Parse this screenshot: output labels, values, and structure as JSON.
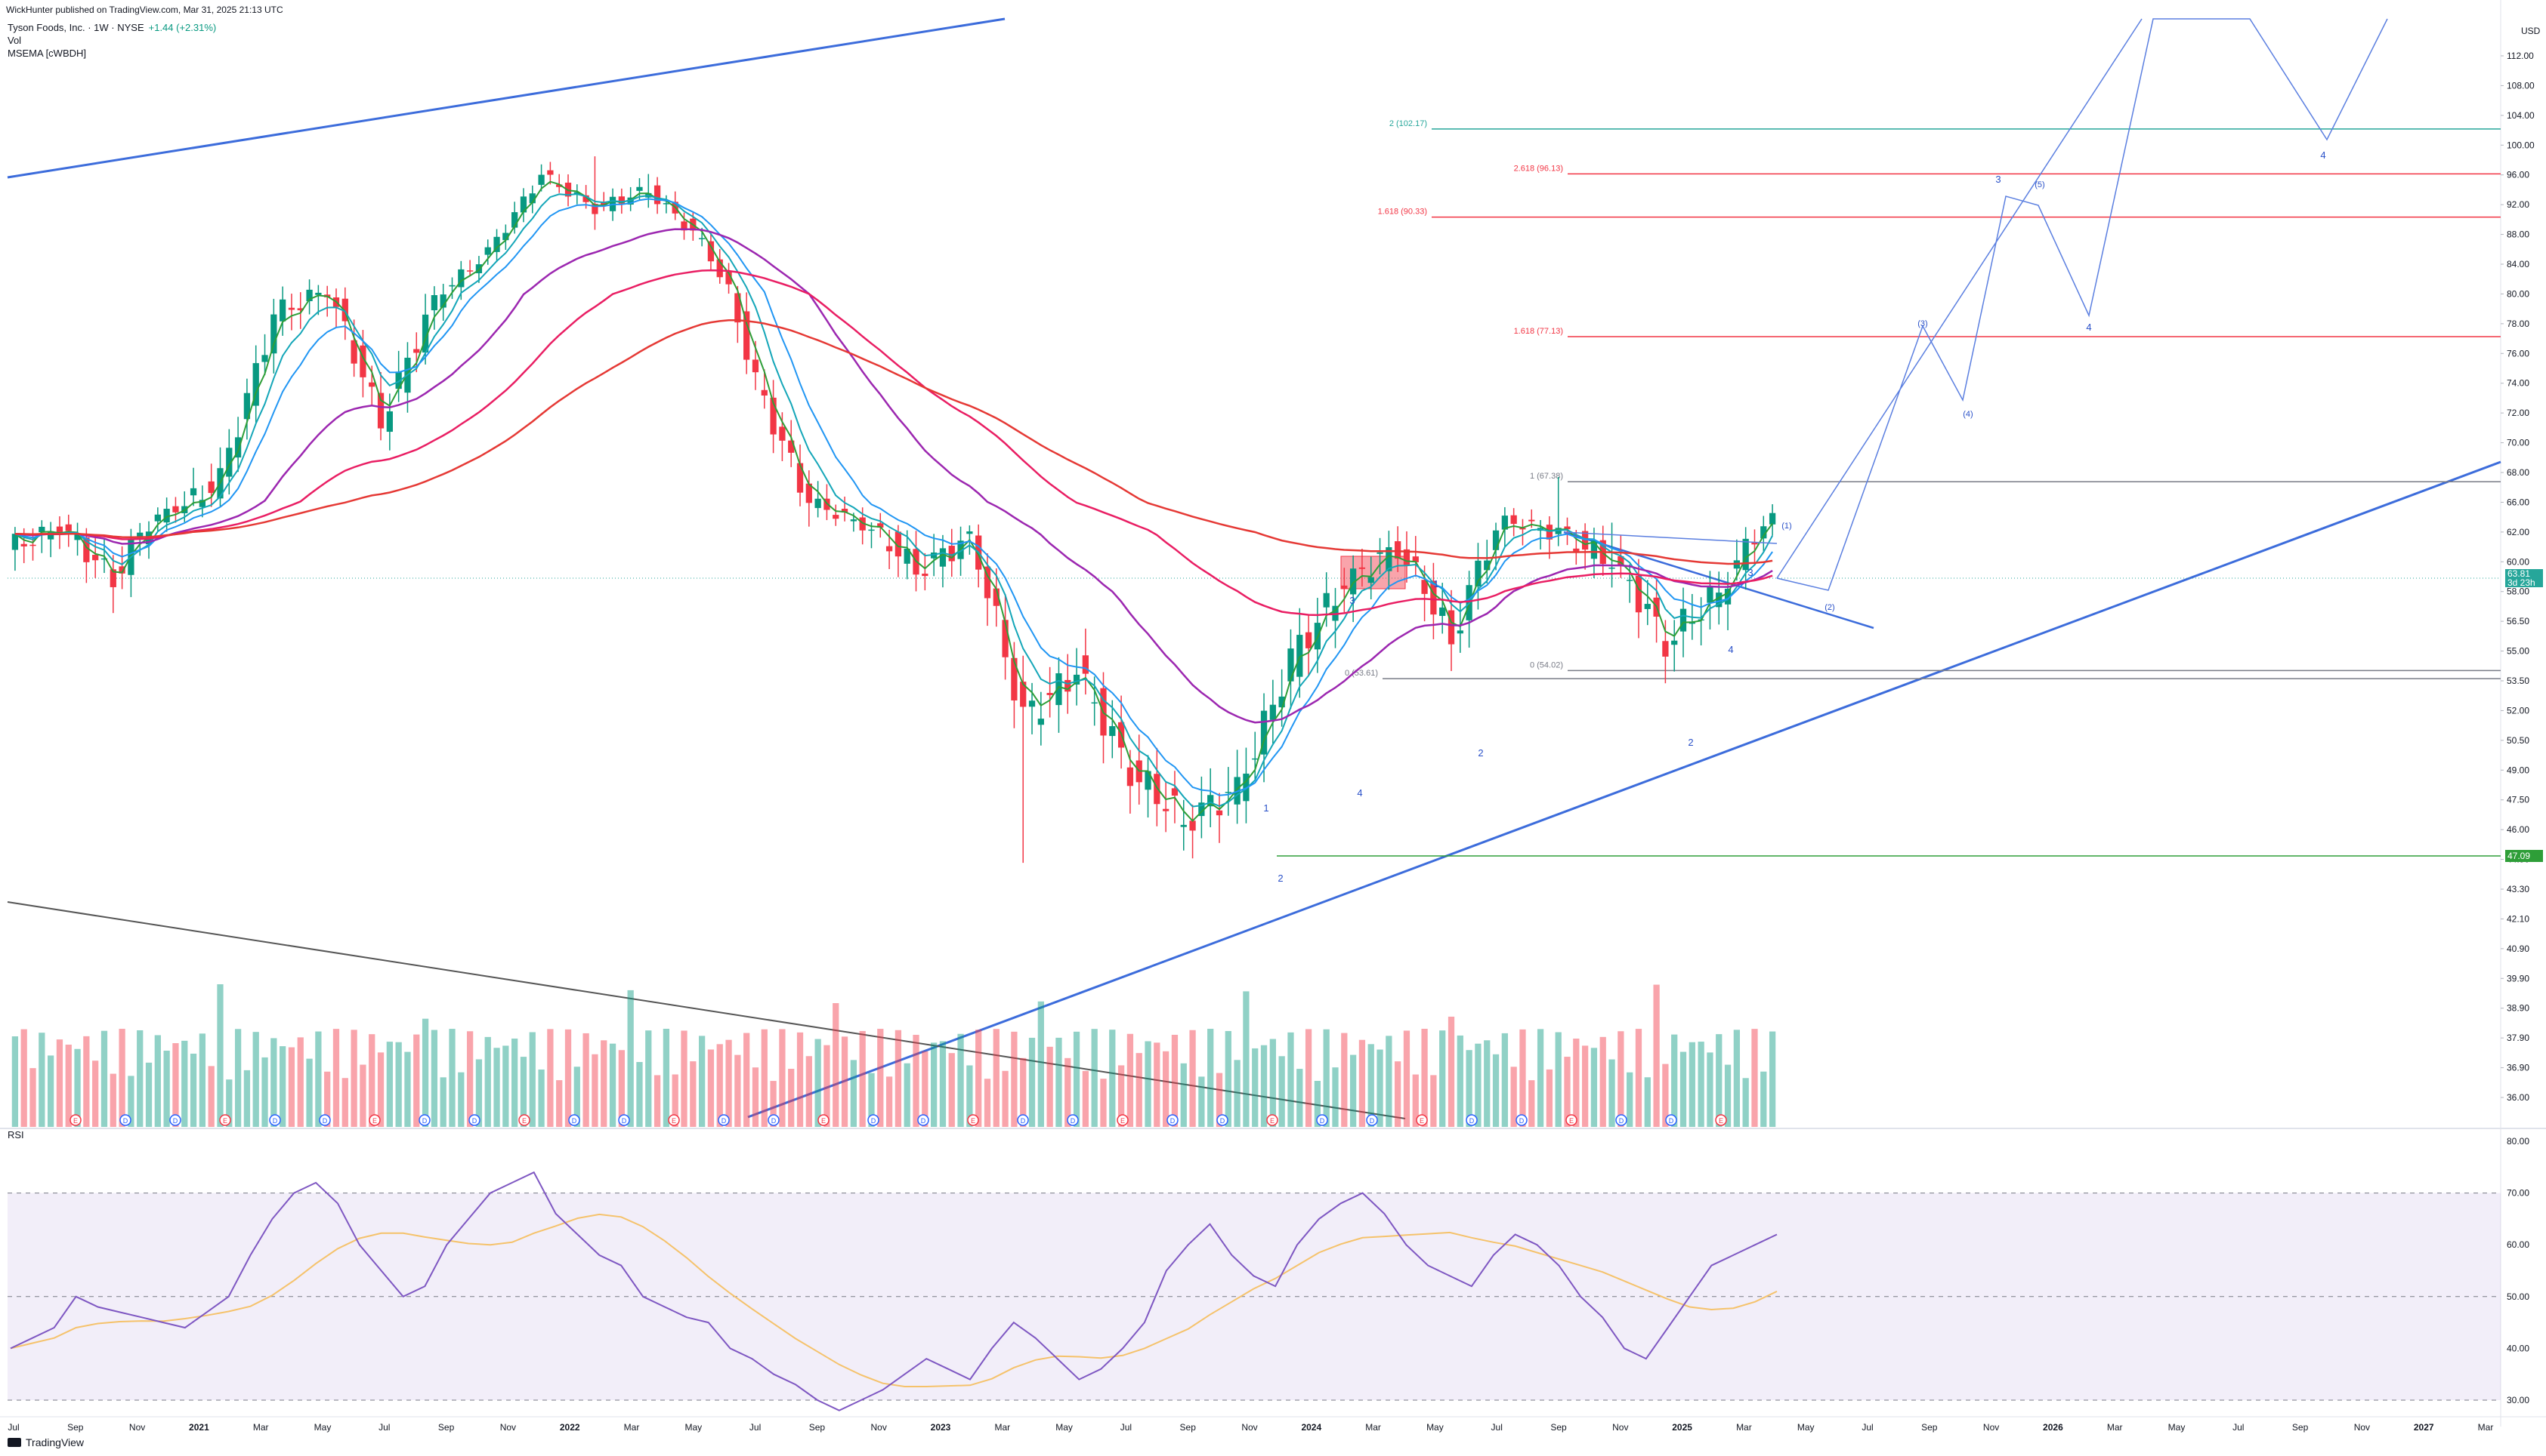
{
  "header": {
    "publisher": "WickHunter published on TradingView.com, Mar 31, 2025 21:13 UTC"
  },
  "legend": {
    "symbol": "Tyson Foods, Inc. · 1W · NYSE",
    "change": "+1.44 (+2.31%)",
    "vol": "Vol",
    "indicator": "MSEMA [cWBDH]"
  },
  "chart_data": {
    "type": "candlestick",
    "title": "Tyson Foods, Inc. · 1W · NYSE",
    "currency": "USD",
    "price_axis_ticks": [
      "112.00",
      "108.00",
      "104.00",
      "100.00",
      "96.00",
      "92.00",
      "88.00",
      "84.00",
      "80.00",
      "78.00",
      "76.00",
      "74.00",
      "72.00",
      "70.00",
      "68.00",
      "66.00",
      "62.00",
      "60.00",
      "58.00",
      "56.50",
      "55.00",
      "53.50",
      "52.00",
      "50.50",
      "49.00",
      "47.50",
      "46.00",
      "44.50",
      "43.30",
      "42.10",
      "40.90",
      "39.90",
      "38.90",
      "37.90",
      "36.90",
      "36.00"
    ],
    "current_price": "63.81",
    "current_countdown": "3d 23h",
    "support_price": "47.09",
    "time_axis_ticks": [
      "Jul",
      "Sep",
      "Nov",
      "2021",
      "Mar",
      "May",
      "Jul",
      "Sep",
      "Nov",
      "2022",
      "Mar",
      "May",
      "Jul",
      "Sep",
      "Nov",
      "2023",
      "Mar",
      "May",
      "Jul",
      "Sep",
      "Nov",
      "2024",
      "Mar",
      "May",
      "Jul",
      "Sep",
      "Nov",
      "2025",
      "Mar",
      "May",
      "Jul",
      "Sep",
      "Nov",
      "2026",
      "Mar",
      "May",
      "Jul",
      "Sep",
      "Nov",
      "2027",
      "Mar"
    ],
    "price_series": [
      {
        "date": "2020-06",
        "open": 59.5,
        "high": 61.5,
        "low": 57.5,
        "close": 60.8
      },
      {
        "date": "2020-08",
        "open": 60.8,
        "high": 63.5,
        "low": 60.0,
        "close": 62.5
      },
      {
        "date": "2020-10",
        "open": 62.5,
        "high": 63.5,
        "low": 58.0,
        "close": 58.9
      },
      {
        "date": "2020-12",
        "open": 58.9,
        "high": 66.0,
        "low": 58.5,
        "close": 64.8
      },
      {
        "date": "2021-02",
        "open": 64.8,
        "high": 69.0,
        "low": 63.5,
        "close": 67.5
      },
      {
        "date": "2021-04",
        "open": 67.5,
        "high": 79.5,
        "low": 67.0,
        "close": 78.5
      },
      {
        "date": "2021-05",
        "open": 78.5,
        "high": 82.5,
        "low": 78.0,
        "close": 80.5
      },
      {
        "date": "2021-07",
        "open": 80.5,
        "high": 81.0,
        "low": 70.0,
        "close": 71.5
      },
      {
        "date": "2021-09",
        "open": 71.5,
        "high": 80.5,
        "low": 71.0,
        "close": 79.5
      },
      {
        "date": "2021-11",
        "open": 79.5,
        "high": 86.5,
        "low": 79.0,
        "close": 85.5
      },
      {
        "date": "2022-01",
        "open": 85.5,
        "high": 97.5,
        "low": 85.0,
        "close": 96.0
      },
      {
        "date": "2022-02",
        "open": 96.0,
        "high": 100.7,
        "low": 89.0,
        "close": 91.5
      },
      {
        "date": "2022-04",
        "open": 91.5,
        "high": 99.7,
        "low": 90.0,
        "close": 94.0
      },
      {
        "date": "2022-06",
        "open": 94.0,
        "high": 94.5,
        "low": 85.0,
        "close": 87.0
      },
      {
        "date": "2022-08",
        "open": 87.0,
        "high": 88.5,
        "low": 73.0,
        "close": 74.0
      },
      {
        "date": "2022-10",
        "open": 74.0,
        "high": 75.0,
        "low": 63.5,
        "close": 66.0
      },
      {
        "date": "2022-12",
        "open": 66.0,
        "high": 67.5,
        "low": 61.5,
        "close": 63.0
      },
      {
        "date": "2023-02",
        "open": 63.0,
        "high": 64.0,
        "low": 58.5,
        "close": 59.5
      },
      {
        "date": "2023-04",
        "open": 59.5,
        "high": 62.5,
        "low": 58.0,
        "close": 61.5
      },
      {
        "date": "2023-05",
        "open": 61.5,
        "high": 61.5,
        "low": 39.0,
        "close": 51.5
      },
      {
        "date": "2023-07",
        "open": 51.5,
        "high": 55.0,
        "low": 49.5,
        "close": 54.0
      },
      {
        "date": "2023-09",
        "open": 54.0,
        "high": 55.5,
        "low": 48.0,
        "close": 49.0
      },
      {
        "date": "2023-10",
        "open": 49.0,
        "high": 50.0,
        "low": 44.9,
        "close": 46.5
      },
      {
        "date": "2023-11",
        "open": 46.5,
        "high": 48.5,
        "low": 45.5,
        "close": 48.0
      },
      {
        "date": "2024-01",
        "open": 48.0,
        "high": 55.5,
        "low": 47.5,
        "close": 54.5
      },
      {
        "date": "2024-03",
        "open": 54.5,
        "high": 59.5,
        "low": 53.5,
        "close": 58.5
      },
      {
        "date": "2024-04",
        "open": 58.5,
        "high": 62.0,
        "low": 58.0,
        "close": 61.0
      },
      {
        "date": "2024-06",
        "open": 61.0,
        "high": 61.5,
        "low": 54.0,
        "close": 55.5
      },
      {
        "date": "2024-08",
        "open": 55.5,
        "high": 64.5,
        "low": 55.0,
        "close": 63.5
      },
      {
        "date": "2024-09",
        "open": 63.5,
        "high": 66.9,
        "low": 61.0,
        "close": 62.0
      },
      {
        "date": "2024-11",
        "open": 62.0,
        "high": 65.0,
        "low": 59.0,
        "close": 60.0
      },
      {
        "date": "2024-12",
        "open": 60.0,
        "high": 60.5,
        "low": 54.0,
        "close": 55.5
      },
      {
        "date": "2025-01",
        "open": 55.5,
        "high": 58.5,
        "low": 55.0,
        "close": 58.0
      },
      {
        "date": "2025-03",
        "open": 58.0,
        "high": 64.5,
        "low": 57.5,
        "close": 63.8
      }
    ],
    "fib_levels": [
      {
        "label": "2 (102.17)",
        "value": 102.17,
        "color": "#26a69a"
      },
      {
        "label": "2.618 (96.13)",
        "value": 96.13,
        "color": "#f23645"
      },
      {
        "label": "1.618 (90.33)",
        "value": 90.33,
        "color": "#f23645"
      },
      {
        "label": "1.618 (77.13)",
        "value": 77.13,
        "color": "#f23645"
      },
      {
        "label": "1 (67.38)",
        "value": 67.38,
        "color": "#787b86"
      },
      {
        "label": "0 (54.02)",
        "value": 54.02,
        "color": "#787b86"
      },
      {
        "label": "0 (53.61)",
        "value": 53.61,
        "color": "#787b86"
      }
    ],
    "wave_labels": [
      "1",
      "2",
      "3",
      "4",
      "(1)",
      "(2)",
      "(3)",
      "(4)",
      "(5)"
    ],
    "event_markers": [
      "D",
      "E",
      "⚡"
    ],
    "rsi": {
      "label": "RSI",
      "upper": 70,
      "lower": 30,
      "mid": 50,
      "axis_ticks": [
        "80.00",
        "70.00",
        "60.00",
        "50.00",
        "40.00",
        "30.00"
      ],
      "values": [
        40,
        42,
        44,
        50,
        48,
        47,
        46,
        45,
        44,
        47,
        50,
        58,
        65,
        70,
        72,
        68,
        60,
        55,
        50,
        52,
        60,
        65,
        70,
        72,
        74,
        66,
        62,
        58,
        56,
        50,
        48,
        46,
        45,
        40,
        38,
        35,
        33,
        30,
        28,
        30,
        32,
        35,
        38,
        36,
        34,
        40,
        45,
        42,
        38,
        34,
        36,
        40,
        45,
        55,
        60,
        64,
        58,
        54,
        52,
        60,
        65,
        68,
        70,
        66,
        60,
        56,
        54,
        52,
        58,
        62,
        60,
        56,
        50,
        46,
        40,
        38,
        44,
        50,
        56,
        58,
        60,
        62
      ]
    },
    "colors": {
      "bull": "#089981",
      "bear": "#f23645",
      "ema_fast": "#2e9e38",
      "ema_mid1": "#14a6b8",
      "ema_mid2": "#2196f3",
      "ema_50": "#9c27b0",
      "ema_100": "#e91e63",
      "ema_200": "#e53935",
      "trend": "#3c6cdb",
      "rsi_line": "#7e57c2",
      "rsi_ma": "#f5c26b"
    }
  },
  "footer": {
    "brand": "TradingView"
  }
}
